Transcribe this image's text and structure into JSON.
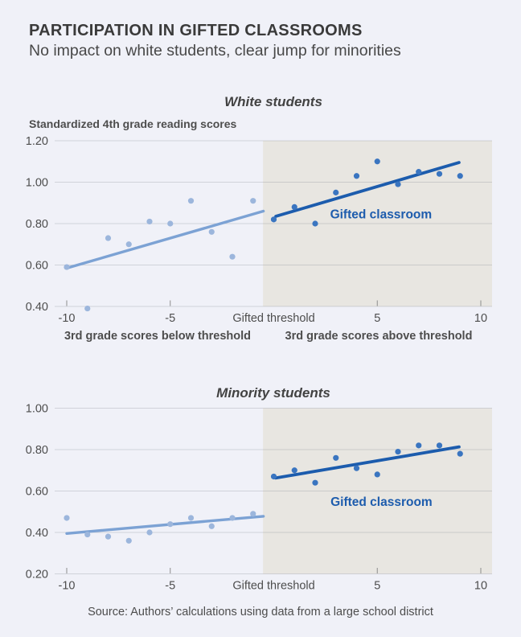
{
  "header": {
    "title": "PARTICIPATION IN GIFTED CLASSROOMS",
    "subtitle": "No impact on white students, clear jump for minorities"
  },
  "axis_captions": {
    "below": "3rd grade scores below threshold",
    "above": "3rd grade scores above threshold"
  },
  "source": "Source: Authors’ calculations using data from a large school district",
  "colors": {
    "background": "#f0f1f8",
    "shaded_region": "#e8e6e1",
    "gridline": "rgba(125,128,140,0.28)",
    "tick_mark": "#8d8d8d",
    "points_light": "#9cb6dc",
    "line_light": "#7ca2d4",
    "points_dark": "#3a75c0",
    "line_dark": "#1c5cad",
    "region_label": "#1d5cad"
  },
  "chart_data": [
    {
      "type": "scatter",
      "title": "White students",
      "ylabel": "Standardized 4th grade reading scores",
      "ylim": [
        0.4,
        1.2
      ],
      "xlim": [
        -10.55,
        10.55
      ],
      "grid": true,
      "y_ticks": [
        {
          "value": 1.2,
          "label": "1.20"
        },
        {
          "value": 1.0,
          "label": "1.00"
        },
        {
          "value": 0.8,
          "label": "0.80"
        },
        {
          "value": 0.6,
          "label": "0.60"
        },
        {
          "value": 0.4,
          "label": "0.40"
        }
      ],
      "x_ticks": [
        {
          "value": -10,
          "label": "-10",
          "tick_mark": true
        },
        {
          "value": -5,
          "label": "-5",
          "tick_mark": true
        },
        {
          "value": 0,
          "label": "Gifted threshold",
          "tick_mark": false
        },
        {
          "value": 5,
          "label": "5",
          "tick_mark": true
        },
        {
          "value": 10,
          "label": "10",
          "tick_mark": true
        }
      ],
      "shaded_region_start_x": -0.52,
      "region_label": "Gifted classroom",
      "region_label_pos": {
        "x": 5.18,
        "y": 0.847
      },
      "series": [
        {
          "name": "below-threshold",
          "style": "light",
          "points": [
            [
              -10,
              0.59
            ],
            [
              -9,
              0.39
            ],
            [
              -8,
              0.73
            ],
            [
              -7,
              0.7
            ],
            [
              -6,
              0.81
            ],
            [
              -5,
              0.8
            ],
            [
              -4,
              0.91
            ],
            [
              -3,
              0.76
            ],
            [
              -2,
              0.64
            ],
            [
              -1,
              0.91
            ]
          ]
        },
        {
          "name": "above-threshold",
          "style": "dark",
          "points": [
            [
              0,
              0.82
            ],
            [
              1,
              0.88
            ],
            [
              2,
              0.8
            ],
            [
              3,
              0.95
            ],
            [
              4,
              1.03
            ],
            [
              5,
              1.1
            ],
            [
              6,
              0.99
            ],
            [
              7,
              1.05
            ],
            [
              8,
              1.04
            ],
            [
              9,
              1.03
            ]
          ]
        }
      ],
      "fit_lines": [
        {
          "name": "below-threshold-fit",
          "style": "light",
          "x": [
            -10,
            -0.5
          ],
          "y": [
            0.585,
            0.86
          ]
        },
        {
          "name": "above-threshold-fit",
          "style": "dark",
          "x": [
            0.1,
            8.95
          ],
          "y": [
            0.835,
            1.095
          ]
        }
      ]
    },
    {
      "type": "scatter",
      "title": "Minority students",
      "ylabel": "",
      "ylim": [
        0.2,
        1.0
      ],
      "xlim": [
        -10.55,
        10.55
      ],
      "grid": true,
      "y_ticks": [
        {
          "value": 1.0,
          "label": "1.00"
        },
        {
          "value": 0.8,
          "label": "0.80"
        },
        {
          "value": 0.6,
          "label": "0.60"
        },
        {
          "value": 0.4,
          "label": "0.40"
        },
        {
          "value": 0.2,
          "label": "0.20"
        }
      ],
      "x_ticks": [
        {
          "value": -10,
          "label": "-10",
          "tick_mark": true
        },
        {
          "value": -5,
          "label": "-5",
          "tick_mark": true
        },
        {
          "value": 0,
          "label": "Gifted threshold",
          "tick_mark": false
        },
        {
          "value": 5,
          "label": "5",
          "tick_mark": true
        },
        {
          "value": 10,
          "label": "10",
          "tick_mark": true
        }
      ],
      "shaded_region_start_x": -0.52,
      "region_label": "Gifted classroom",
      "region_label_pos": {
        "x": 5.2,
        "y": 0.55
      },
      "series": [
        {
          "name": "below-threshold",
          "style": "light",
          "points": [
            [
              -10,
              0.47
            ],
            [
              -9,
              0.39
            ],
            [
              -8,
              0.38
            ],
            [
              -7,
              0.36
            ],
            [
              -6,
              0.4
            ],
            [
              -5,
              0.44
            ],
            [
              -4,
              0.47
            ],
            [
              -3,
              0.43
            ],
            [
              -2,
              0.47
            ],
            [
              -1,
              0.49
            ]
          ]
        },
        {
          "name": "above-threshold",
          "style": "dark",
          "points": [
            [
              0,
              0.67
            ],
            [
              1,
              0.7
            ],
            [
              2,
              0.64
            ],
            [
              3,
              0.76
            ],
            [
              4,
              0.71
            ],
            [
              5,
              0.68
            ],
            [
              6,
              0.79
            ],
            [
              7,
              0.82
            ],
            [
              8,
              0.82
            ],
            [
              9,
              0.78
            ]
          ]
        }
      ],
      "fit_lines": [
        {
          "name": "below-threshold-fit",
          "style": "light",
          "x": [
            -10,
            -0.5
          ],
          "y": [
            0.395,
            0.478
          ]
        },
        {
          "name": "above-threshold-fit",
          "style": "dark",
          "x": [
            0.1,
            8.95
          ],
          "y": [
            0.663,
            0.813
          ]
        }
      ]
    }
  ]
}
